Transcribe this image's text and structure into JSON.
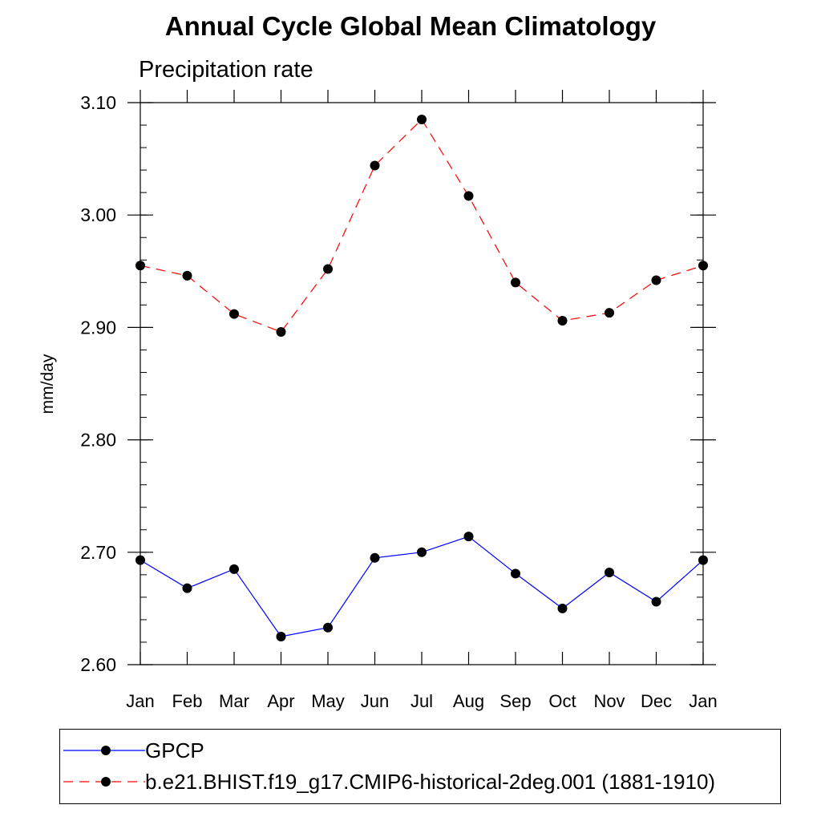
{
  "chart_data": {
    "type": "line",
    "title": "Annual Cycle Global Mean Climatology",
    "subtitle": "Precipitation rate",
    "ylabel": "mm/day",
    "xlabel": "",
    "categories": [
      "Jan",
      "Feb",
      "Mar",
      "Apr",
      "May",
      "Jun",
      "Jul",
      "Aug",
      "Sep",
      "Oct",
      "Nov",
      "Dec",
      "Jan"
    ],
    "ylim": [
      2.6,
      3.1
    ],
    "yticks": [
      "2.60",
      "2.70",
      "2.80",
      "2.90",
      "3.00",
      "3.10"
    ],
    "yminor_step": 0.02,
    "grid": false,
    "legend_position": "bottom",
    "series": [
      {
        "name": "GPCP",
        "color": "#0000ff",
        "dash": "solid",
        "marker": "circle",
        "values": [
          2.693,
          2.668,
          2.685,
          2.625,
          2.633,
          2.695,
          2.7,
          2.714,
          2.681,
          2.65,
          2.682,
          2.656,
          2.693
        ]
      },
      {
        "name": "b.e21.BHIST.f19_g17.CMIP6-historical-2deg.001 (1881-1910)",
        "color": "#ff0000",
        "dash": "dashed",
        "marker": "circle",
        "values": [
          2.955,
          2.946,
          2.912,
          2.896,
          2.952,
          3.044,
          3.085,
          3.017,
          2.94,
          2.906,
          2.913,
          2.942,
          2.955
        ]
      }
    ]
  }
}
